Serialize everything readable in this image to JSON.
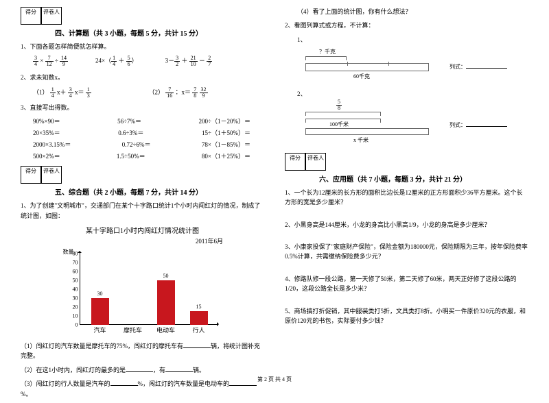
{
  "scoreBox": {
    "score": "得分",
    "grader": "评卷人"
  },
  "sec4": {
    "title": "四、计算题（共 3 小题，每题 5 分，共计 15 分）",
    "q1": "1、下面各题怎样简便就怎样算。",
    "q1items": [
      "",
      "",
      ""
    ],
    "q2": "2、求未知数x。",
    "q2a": "（1）",
    "q2b": "（2）",
    "q3": "3、直接写出得数。",
    "q3rows": [
      [
        "90%×90＝",
        "56÷7%＝",
        "200÷（1－20%）＝"
      ],
      [
        "20×35%＝",
        "0.6÷3%＝",
        "15÷（1＋50%）＝"
      ],
      [
        "2000×3.15%＝",
        "0.72÷6%＝",
        "78×（1－85%）＝"
      ],
      [
        "500×2%＝",
        "1.5÷50%＝",
        "80×（1＋25%）＝"
      ]
    ]
  },
  "sec5": {
    "title": "五、综合题（共 2 小题，每题 7 分，共计 14 分）",
    "q1": "1、为了创建\"文明城市\"，交通部门在某个十字路口统计1个小时内闯红灯的情况，制成了统计图，如图：",
    "chart": {
      "title": "某十字路口1小时内闯红灯情况统计图",
      "date": "2011年6月",
      "y_name": "数量",
      "y_ticks": [
        0,
        10,
        20,
        30,
        40,
        50,
        60,
        70,
        80
      ],
      "y_max": 80,
      "categories": [
        "汽车",
        "摩托车",
        "电动车",
        "行人"
      ],
      "values": [
        30,
        null,
        50,
        15
      ],
      "value_labels": [
        "30",
        "",
        "50",
        "15"
      ],
      "bar_color": "#c8171e",
      "bg": "#ffffff"
    },
    "q1sub": [
      "（1）闯红灯的汽车数量是摩托车的75%，闯红灯的摩托车有______辆，将统计图补充完整。",
      "（2）在这1小时内，闯红灯的最多的是______，有______辆。",
      "（3）闯红灯的行人数量是汽车的______%，闯红灯的汽车数量是电动车的______%。"
    ],
    "q1d": "（4）看了上面的统计图，你有什么想法？",
    "q2": "2、看图列算式或方程，不计算：",
    "q2a_top": "？千克",
    "q2a_bottom": "60千克",
    "q2b_top_num": "5",
    "q2b_top_den": "8",
    "q2b_mid": "100千米",
    "q2b_bottom": "x 千米",
    "formula": "列式：",
    "label1": "1、",
    "label2": "2、"
  },
  "sec6": {
    "title": "六、应用题（共 7 小题，每题 3 分，共计 21 分）",
    "qs": [
      "1、一个长为12厘米的长方形的面积比边长是12厘米的正方形面积少36平方厘米。这个长方形的宽是多少厘米？",
      "2、小黑身高是144厘米，小龙的身高比小黑高1/9，小龙的身高是多少厘米？",
      "3、小康家投保了\"家庭财产保险\"，保险金额为180000元，保险期限为三年，按年保险费率0.5%计算，共需缴纳保险费多少元？",
      "4、修路队修一段公路，第一天修了50米，第二天修了60米，两天正好修了这段公路的1/20，这段公路全长是多少米？",
      "5、商场搞打折促销，其中服装类打5折，文具类打8折。小明买一件原价320元的衣服，和原价120元的书包，实际要付多少钱？"
    ]
  },
  "footer": "第 2 页  共 4 页"
}
